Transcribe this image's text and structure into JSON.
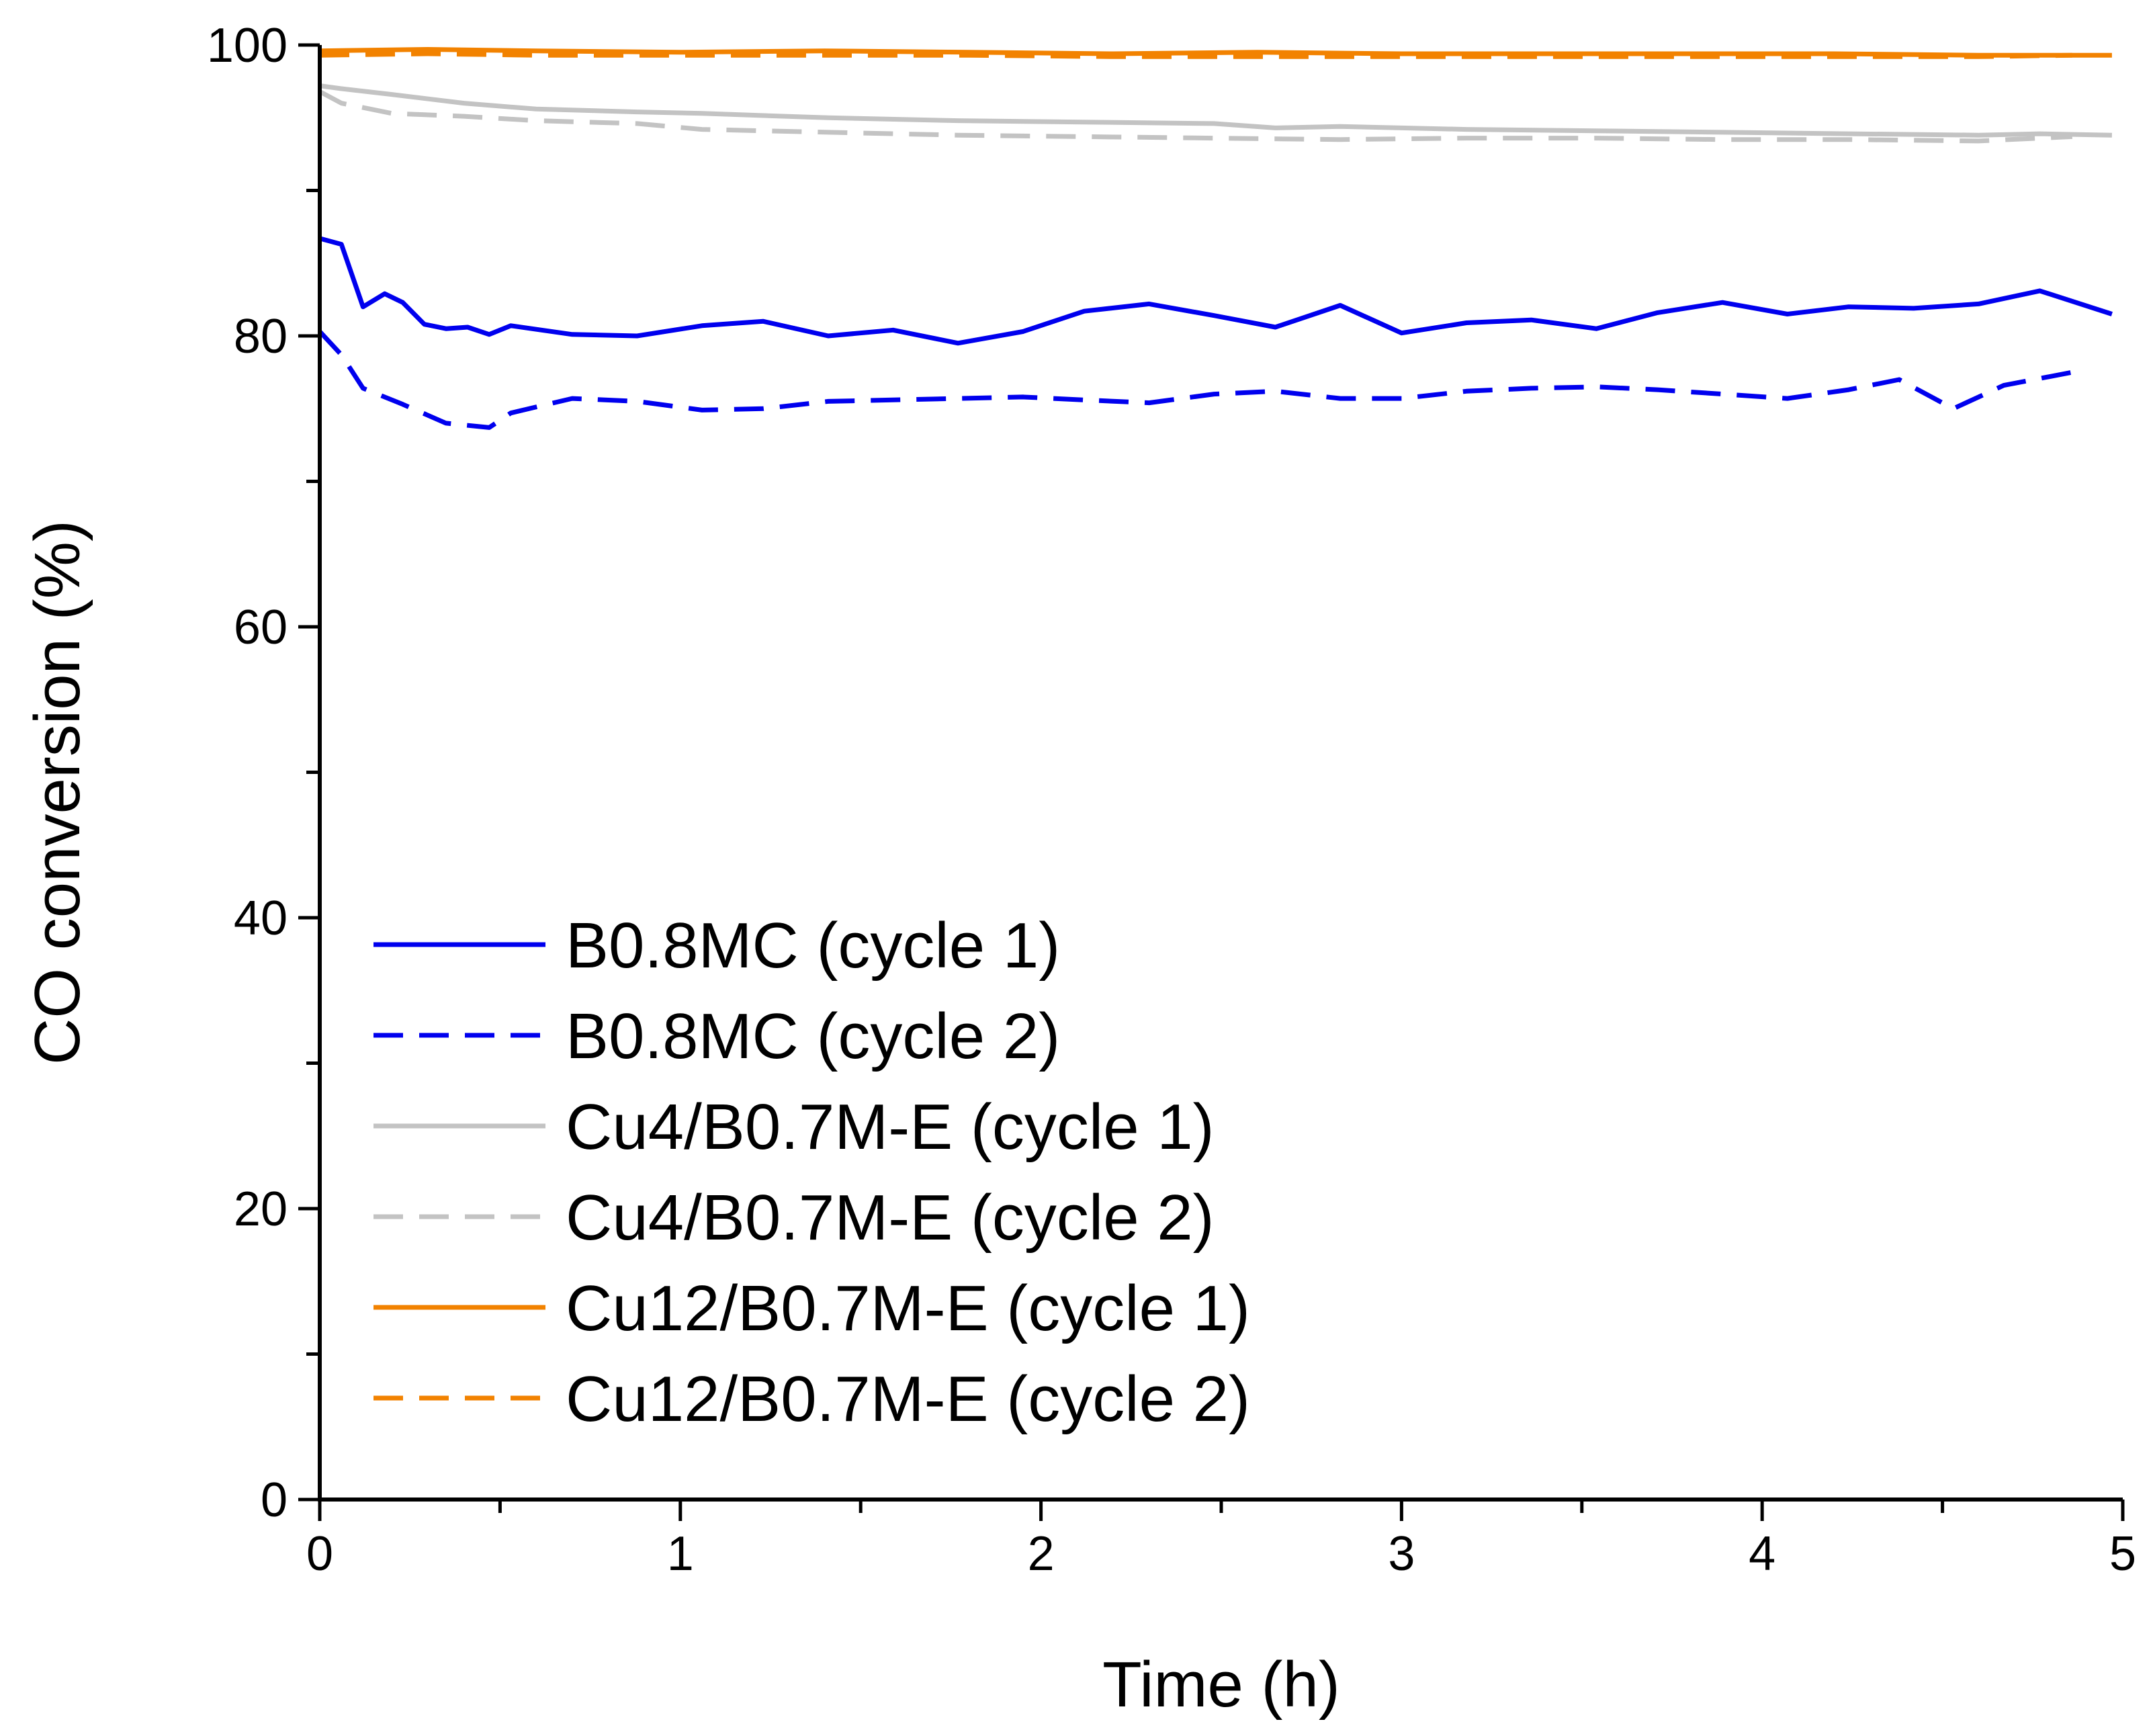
{
  "chart_data": {
    "type": "line",
    "title": "",
    "xlabel": "Time (h)",
    "ylabel": "CO conversion (%)",
    "xlim": [
      0,
      5
    ],
    "ylim": [
      0,
      100
    ],
    "xticks": [
      "0",
      "1",
      "2",
      "3",
      "4",
      "5"
    ],
    "yticks": [
      "0",
      "20",
      "40",
      "60",
      "80",
      "100"
    ],
    "grid": false,
    "legend_position": "lower-left",
    "series": [
      {
        "name": "B0.8MC (cycle 1)",
        "color": "#0000ee",
        "style": "solid",
        "x": [
          0,
          0.06,
          0.12,
          0.18,
          0.23,
          0.29,
          0.35,
          0.41,
          0.47,
          0.53,
          0.7,
          0.88,
          1.06,
          1.23,
          1.41,
          1.59,
          1.77,
          1.95,
          2.12,
          2.3,
          2.48,
          2.65,
          2.83,
          3.0,
          3.18,
          3.36,
          3.54,
          3.71,
          3.89,
          4.07,
          4.24,
          4.42,
          4.6,
          4.77,
          4.97
        ],
        "y": [
          86.7,
          86.3,
          82.0,
          82.9,
          82.3,
          80.8,
          80.5,
          80.6,
          80.1,
          80.7,
          80.1,
          80.0,
          80.7,
          81.0,
          80.0,
          80.4,
          79.5,
          80.3,
          81.7,
          82.2,
          81.4,
          80.6,
          82.1,
          80.2,
          80.9,
          81.1,
          80.5,
          81.6,
          82.3,
          81.5,
          82.0,
          81.9,
          82.2,
          83.1,
          81.5
        ]
      },
      {
        "name": "B0.8MC (cycle 2)",
        "color": "#0000ee",
        "style": "dashed",
        "x": [
          0,
          0.06,
          0.12,
          0.23,
          0.35,
          0.47,
          0.53,
          0.7,
          0.88,
          1.06,
          1.23,
          1.41,
          1.59,
          1.77,
          1.95,
          2.12,
          2.3,
          2.48,
          2.65,
          2.83,
          3.0,
          3.18,
          3.36,
          3.54,
          3.71,
          3.89,
          4.07,
          4.24,
          4.38,
          4.53,
          4.67,
          4.86
        ],
        "y": [
          80.3,
          78.7,
          76.4,
          75.3,
          74.0,
          73.7,
          74.7,
          75.7,
          75.5,
          74.9,
          75.0,
          75.5,
          75.6,
          75.7,
          75.8,
          75.6,
          75.4,
          76.0,
          76.2,
          75.7,
          75.7,
          76.2,
          76.4,
          76.5,
          76.3,
          76.0,
          75.7,
          76.3,
          77.0,
          75.0,
          76.6,
          77.5
        ]
      },
      {
        "name": "Cu4/B0.7M-E (cycle 1)",
        "color": "#c3c3c3",
        "style": "solid",
        "x": [
          0,
          0.06,
          0.2,
          0.4,
          0.6,
          0.88,
          1.06,
          1.41,
          1.77,
          2.12,
          2.48,
          2.65,
          2.83,
          3.0,
          3.18,
          3.54,
          3.89,
          4.24,
          4.6,
          4.77,
          4.97
        ],
        "y": [
          97.2,
          97.0,
          96.6,
          96.0,
          95.6,
          95.4,
          95.3,
          95.0,
          94.8,
          94.7,
          94.6,
          94.3,
          94.4,
          94.3,
          94.2,
          94.1,
          94.0,
          93.9,
          93.8,
          93.9,
          93.8
        ]
      },
      {
        "name": "Cu4/B0.7M-E (cycle 2)",
        "color": "#c3c3c3",
        "style": "dashed",
        "x": [
          0,
          0.06,
          0.2,
          0.4,
          0.6,
          0.88,
          1.06,
          1.41,
          1.77,
          2.12,
          2.48,
          2.83,
          3.18,
          3.54,
          3.89,
          4.24,
          4.6,
          4.86
        ],
        "y": [
          96.8,
          96.0,
          95.3,
          95.1,
          94.8,
          94.6,
          94.2,
          94.0,
          93.8,
          93.7,
          93.6,
          93.5,
          93.6,
          93.6,
          93.5,
          93.5,
          93.4,
          93.7
        ]
      },
      {
        "name": "Cu12/B0.7M-E (cycle 1)",
        "color": "#f28200",
        "style": "solid",
        "x": [
          0,
          0.3,
          0.6,
          1.0,
          1.4,
          1.8,
          2.2,
          2.6,
          3.0,
          3.4,
          3.8,
          4.2,
          4.6,
          4.97
        ],
        "y": [
          99.6,
          99.7,
          99.6,
          99.5,
          99.6,
          99.5,
          99.4,
          99.5,
          99.4,
          99.4,
          99.4,
          99.4,
          99.3,
          99.3
        ]
      },
      {
        "name": "Cu12/B0.7M-E (cycle 2)",
        "color": "#f28200",
        "style": "dashed",
        "x": [
          0,
          0.3,
          0.6,
          1.0,
          1.4,
          1.8,
          2.2,
          2.6,
          3.0,
          3.4,
          3.8,
          4.2,
          4.6,
          4.86
        ],
        "y": [
          99.3,
          99.4,
          99.3,
          99.3,
          99.3,
          99.3,
          99.2,
          99.2,
          99.2,
          99.2,
          99.2,
          99.2,
          99.2,
          99.3
        ]
      }
    ]
  }
}
